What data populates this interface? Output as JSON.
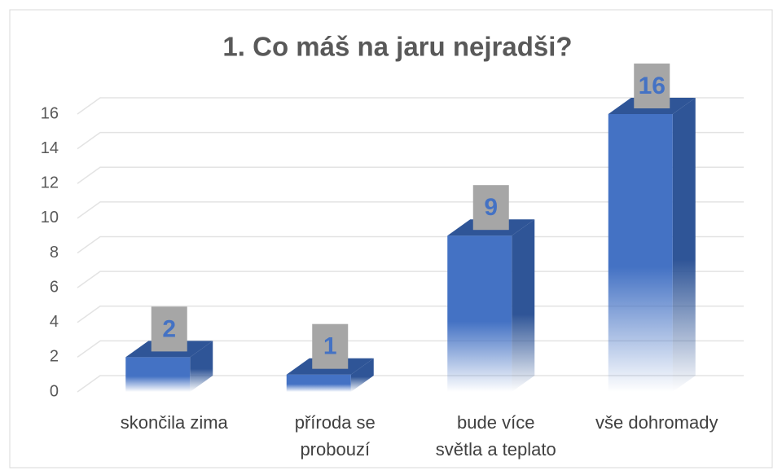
{
  "chart_data": {
    "type": "bar3d",
    "title": "1. Co máš na jaru nejradši?",
    "categories": [
      "skončila zima",
      "příroda se probouzí",
      "bude více světla a teplato",
      "vše dohromady"
    ],
    "values": [
      2,
      1,
      9,
      16
    ],
    "color": "#4472c4",
    "ylim": [
      0,
      16
    ],
    "yticks": [
      0,
      2,
      4,
      6,
      8,
      10,
      12,
      14,
      16
    ],
    "grid": true
  }
}
